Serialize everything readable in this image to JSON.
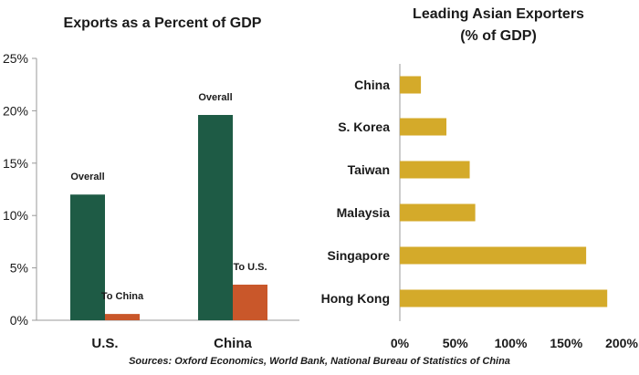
{
  "colors": {
    "overall": "#1e5b45",
    "bilateral": "#c9572a",
    "asian_bars": "#d4aa2a",
    "axis": "#999999",
    "text": "#1a1a1a"
  },
  "chart_data": [
    {
      "type": "bar",
      "title": "Exports as a Percent of GDP",
      "xlabel": "",
      "ylabel": "",
      "categories": [
        "U.S.",
        "China"
      ],
      "series": [
        {
          "label": "Overall",
          "values": [
            12,
            19.6
          ]
        },
        {
          "labels": [
            "To China",
            "To U.S."
          ],
          "values": [
            0.6,
            3.4
          ]
        }
      ],
      "ylim": [
        0,
        25
      ],
      "yticks": [
        0,
        5,
        10,
        15,
        20,
        25
      ],
      "ytick_labels": [
        "0%",
        "5%",
        "10%",
        "15%",
        "20%",
        "25%"
      ],
      "grid": false
    },
    {
      "type": "bar",
      "orientation": "horizontal",
      "title": "Leading Asian Exporters",
      "subtitle": "(% of GDP)",
      "categories": [
        "China",
        "S. Korea",
        "Taiwan",
        "Malaysia",
        "Singapore",
        "Hong Kong"
      ],
      "values": [
        19,
        42,
        63,
        68,
        168,
        187
      ],
      "xlim": [
        0,
        200
      ],
      "xticks": [
        0,
        50,
        100,
        150,
        200
      ],
      "xtick_labels": [
        "0%",
        "50%",
        "100%",
        "150%",
        "200%"
      ],
      "grid": false
    }
  ],
  "footer": {
    "source": "Sources: Oxford Economics, World Bank, National Bureau of Statistics of China"
  }
}
